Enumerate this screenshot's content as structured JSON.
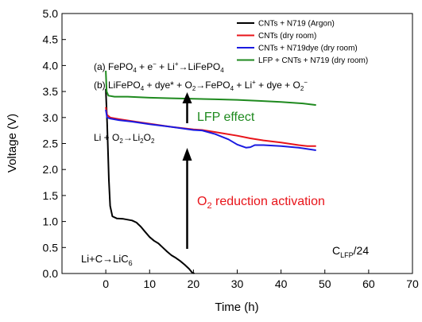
{
  "chart_data": {
    "type": "line",
    "xlabel": "Time (h)",
    "ylabel": "Voltage (V)",
    "xlim": [
      -10,
      70
    ],
    "ylim": [
      0.0,
      5.0
    ],
    "xticks": [
      0,
      10,
      20,
      30,
      40,
      50,
      60,
      70
    ],
    "yticks": [
      "0.0",
      "0.5",
      "1.0",
      "1.5",
      "2.0",
      "2.5",
      "3.0",
      "3.5",
      "4.0",
      "4.5",
      "5.0"
    ],
    "legend_position": "top-right",
    "series": [
      {
        "name": "CNTs + N719 (Argon)",
        "color": "#000000",
        "points": [
          [
            0,
            3.55
          ],
          [
            0.3,
            2.9
          ],
          [
            0.7,
            1.8
          ],
          [
            1,
            1.3
          ],
          [
            1.5,
            1.1
          ],
          [
            2.5,
            1.06
          ],
          [
            4,
            1.05
          ],
          [
            6,
            1.02
          ],
          [
            7,
            0.98
          ],
          [
            8,
            0.9
          ],
          [
            9,
            0.8
          ],
          [
            10,
            0.7
          ],
          [
            11,
            0.63
          ],
          [
            12,
            0.58
          ],
          [
            13,
            0.5
          ],
          [
            14,
            0.42
          ],
          [
            15,
            0.35
          ],
          [
            16,
            0.3
          ],
          [
            17,
            0.24
          ],
          [
            18,
            0.17
          ],
          [
            19,
            0.09
          ],
          [
            19.7,
            0.02
          ],
          [
            20.2,
            0.0
          ]
        ]
      },
      {
        "name": "CNTs (dry room)",
        "color": "#e8141a",
        "points": [
          [
            0,
            3.2
          ],
          [
            0.3,
            3.05
          ],
          [
            1,
            3.0
          ],
          [
            3,
            2.97
          ],
          [
            6,
            2.93
          ],
          [
            10,
            2.88
          ],
          [
            15,
            2.82
          ],
          [
            20,
            2.77
          ],
          [
            22,
            2.76
          ],
          [
            25,
            2.72
          ],
          [
            30,
            2.65
          ],
          [
            33,
            2.6
          ],
          [
            36,
            2.56
          ],
          [
            40,
            2.52
          ],
          [
            44,
            2.47
          ],
          [
            46,
            2.45
          ],
          [
            48,
            2.45
          ]
        ]
      },
      {
        "name": "CNTs + N719dye (dry room)",
        "color": "#1a1ae0",
        "points": [
          [
            0,
            3.15
          ],
          [
            0.3,
            3.0
          ],
          [
            1,
            2.98
          ],
          [
            3,
            2.95
          ],
          [
            6,
            2.92
          ],
          [
            10,
            2.87
          ],
          [
            15,
            2.82
          ],
          [
            20,
            2.76
          ],
          [
            22,
            2.75
          ],
          [
            25,
            2.68
          ],
          [
            28,
            2.58
          ],
          [
            30,
            2.48
          ],
          [
            32,
            2.42
          ],
          [
            33,
            2.43
          ],
          [
            34,
            2.47
          ],
          [
            36,
            2.47
          ],
          [
            40,
            2.45
          ],
          [
            44,
            2.42
          ],
          [
            48,
            2.37
          ]
        ]
      },
      {
        "name": "LFP + CNTs + N719 (dry room)",
        "color": "#1f8a1f",
        "points": [
          [
            0,
            3.9
          ],
          [
            0.2,
            3.5
          ],
          [
            0.6,
            3.42
          ],
          [
            2,
            3.4
          ],
          [
            5,
            3.4
          ],
          [
            10,
            3.38
          ],
          [
            15,
            3.37
          ],
          [
            20,
            3.36
          ],
          [
            25,
            3.35
          ],
          [
            30,
            3.34
          ],
          [
            35,
            3.32
          ],
          [
            40,
            3.3
          ],
          [
            45,
            3.27
          ],
          [
            48,
            3.24
          ]
        ]
      }
    ],
    "annotations": {
      "reaction_a": {
        "prefix": "(a) FePO",
        "sub1": "4",
        "mid1": " + e",
        "sup1": "−",
        "mid2": " + Li",
        "sup2": "+",
        "mid3": "→LiFePO",
        "sub2": "4"
      },
      "reaction_b": {
        "prefix": "(b) LiFePO",
        "sub1": "4",
        "mid1": " + dye* + O",
        "sub2": "2",
        "mid2": "→FePO",
        "sub3": "4",
        "mid3": " + Li",
        "sup1": "+",
        "mid4": " + dye + O",
        "sub4": "2",
        "sup2": "−"
      },
      "lfp_effect": "LFP effect",
      "li2o2": {
        "prefix": "Li + O",
        "sub1": "2",
        "mid": "→Li",
        "sub2": "2",
        "tail": "O",
        "sub3": "2"
      },
      "o2_reduction": {
        "prefix": "O",
        "sub": "2",
        "tail": " reduction activation"
      },
      "lic6": {
        "prefix": "Li+C→LiC",
        "sub": "6"
      },
      "rate": {
        "prefix": "C",
        "sub": "LFP",
        "tail": "/24"
      }
    }
  }
}
